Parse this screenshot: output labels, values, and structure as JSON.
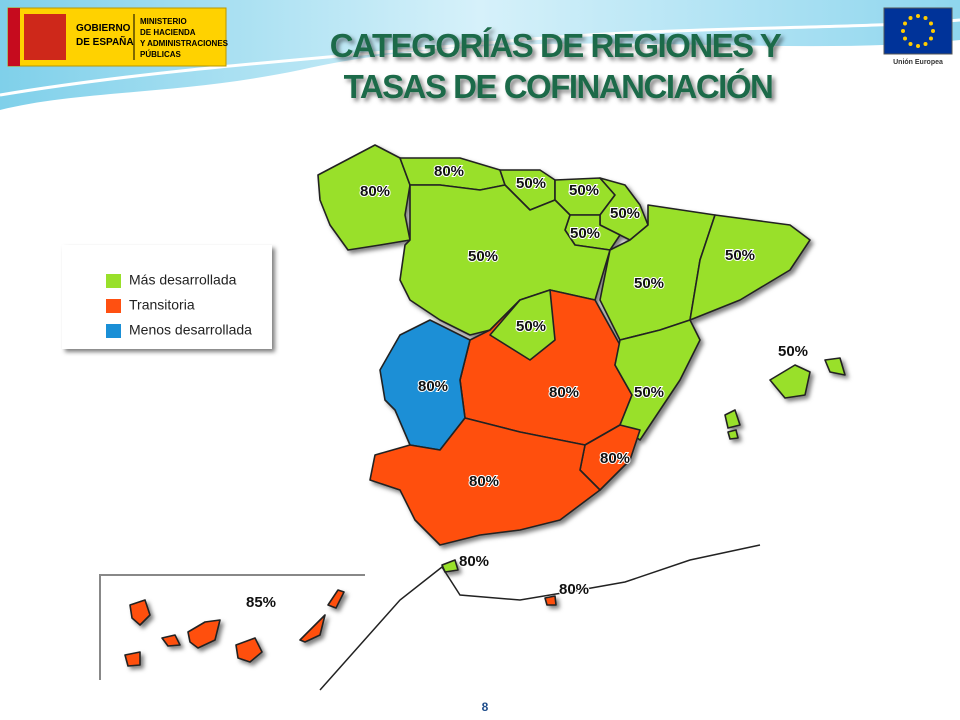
{
  "header": {
    "logo_left": {
      "line1": "GOBIERNO",
      "line2": "DE ESPAÑA"
    },
    "ministry": {
      "line1": "MINISTERIO",
      "line2": "DE HACIENDA",
      "line3": "Y ADMINISTRACIONES",
      "line4": "PÚBLICAS"
    },
    "eu_label": "Unión Europea"
  },
  "title": {
    "line1": "CATEGORÍAS DE REGIONES Y",
    "line2": "TASAS DE COFINANCIACIÓN"
  },
  "legend": {
    "items": [
      {
        "name": "Más desarrollada",
        "color": "#99e02a"
      },
      {
        "name": "Transitoria",
        "color": "#ff5011"
      },
      {
        "name": "Menos desarrollada",
        "color": "#1a8fd6"
      }
    ]
  },
  "regions": [
    {
      "label": "80%",
      "category": 0
    },
    {
      "label": "80%",
      "category": 0
    },
    {
      "label": "50%",
      "category": 0
    },
    {
      "label": "50%",
      "category": 0
    },
    {
      "label": "50%",
      "category": 0
    },
    {
      "label": "50%",
      "category": 0
    },
    {
      "label": "50%",
      "category": 0
    },
    {
      "label": "50%",
      "category": 0
    },
    {
      "label": "50%",
      "category": 0
    },
    {
      "label": "50%",
      "category": 0
    },
    {
      "label": "80%",
      "category": 2
    },
    {
      "label": "80%",
      "category": 1
    },
    {
      "label": "50%",
      "category": 0
    },
    {
      "label": "80%",
      "category": 1
    },
    {
      "label": "80%",
      "category": 1
    },
    {
      "label": "50%",
      "category": 0
    },
    {
      "label": "80%",
      "category": 0
    },
    {
      "label": "80%",
      "category": 1
    },
    {
      "label": "85%",
      "category": 1
    }
  ],
  "page_number": "8"
}
